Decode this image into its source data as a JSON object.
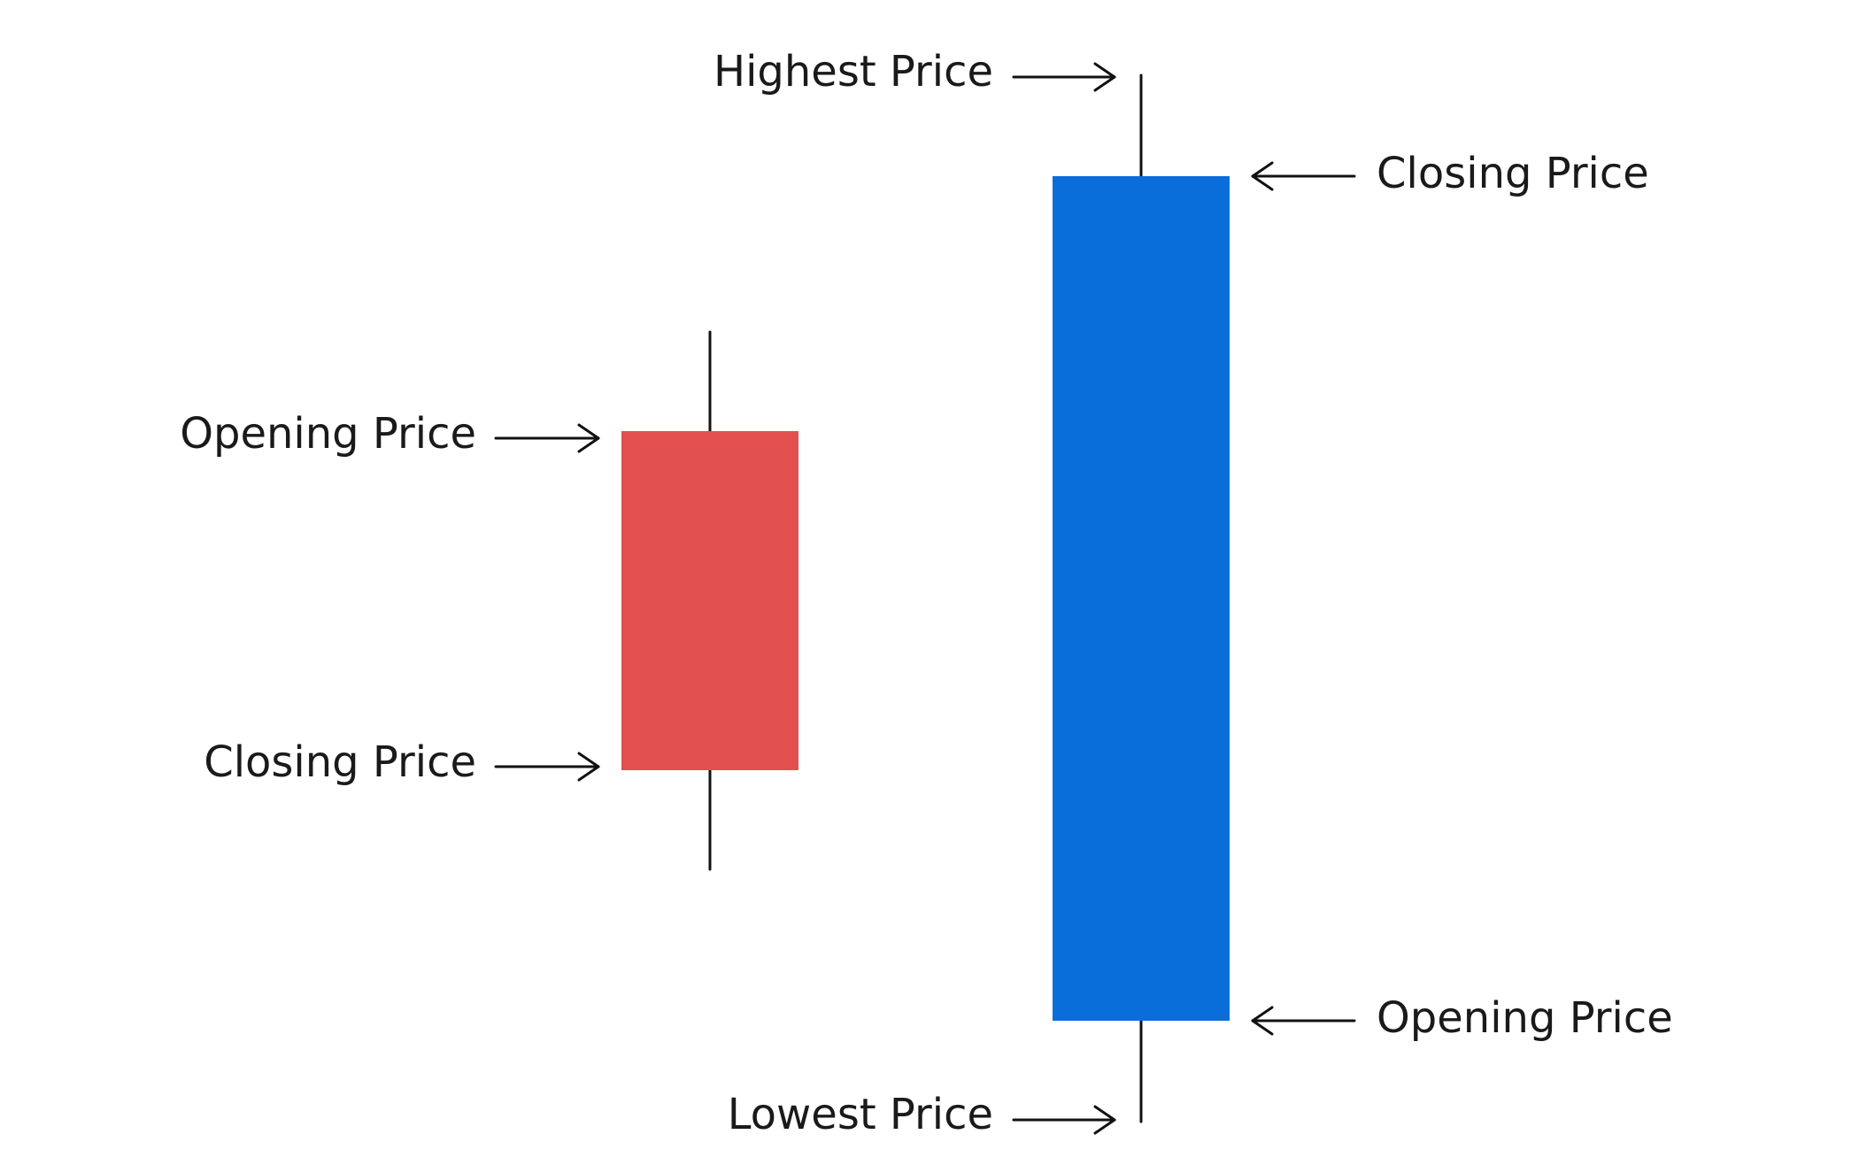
{
  "colors": {
    "bearish_body": "#E24F4F",
    "bullish_body": "#0A6EDA",
    "line": "#111111",
    "text": "#1a1a1a",
    "background": "#FFFFFF"
  },
  "bearish_candle": {
    "opening_label": "Opening Price",
    "closing_label": "Closing Price"
  },
  "bullish_candle": {
    "highest_label": "Highest Price",
    "closing_label": "Closing Price",
    "opening_label": "Opening Price",
    "lowest_label": "Lowest Price"
  }
}
